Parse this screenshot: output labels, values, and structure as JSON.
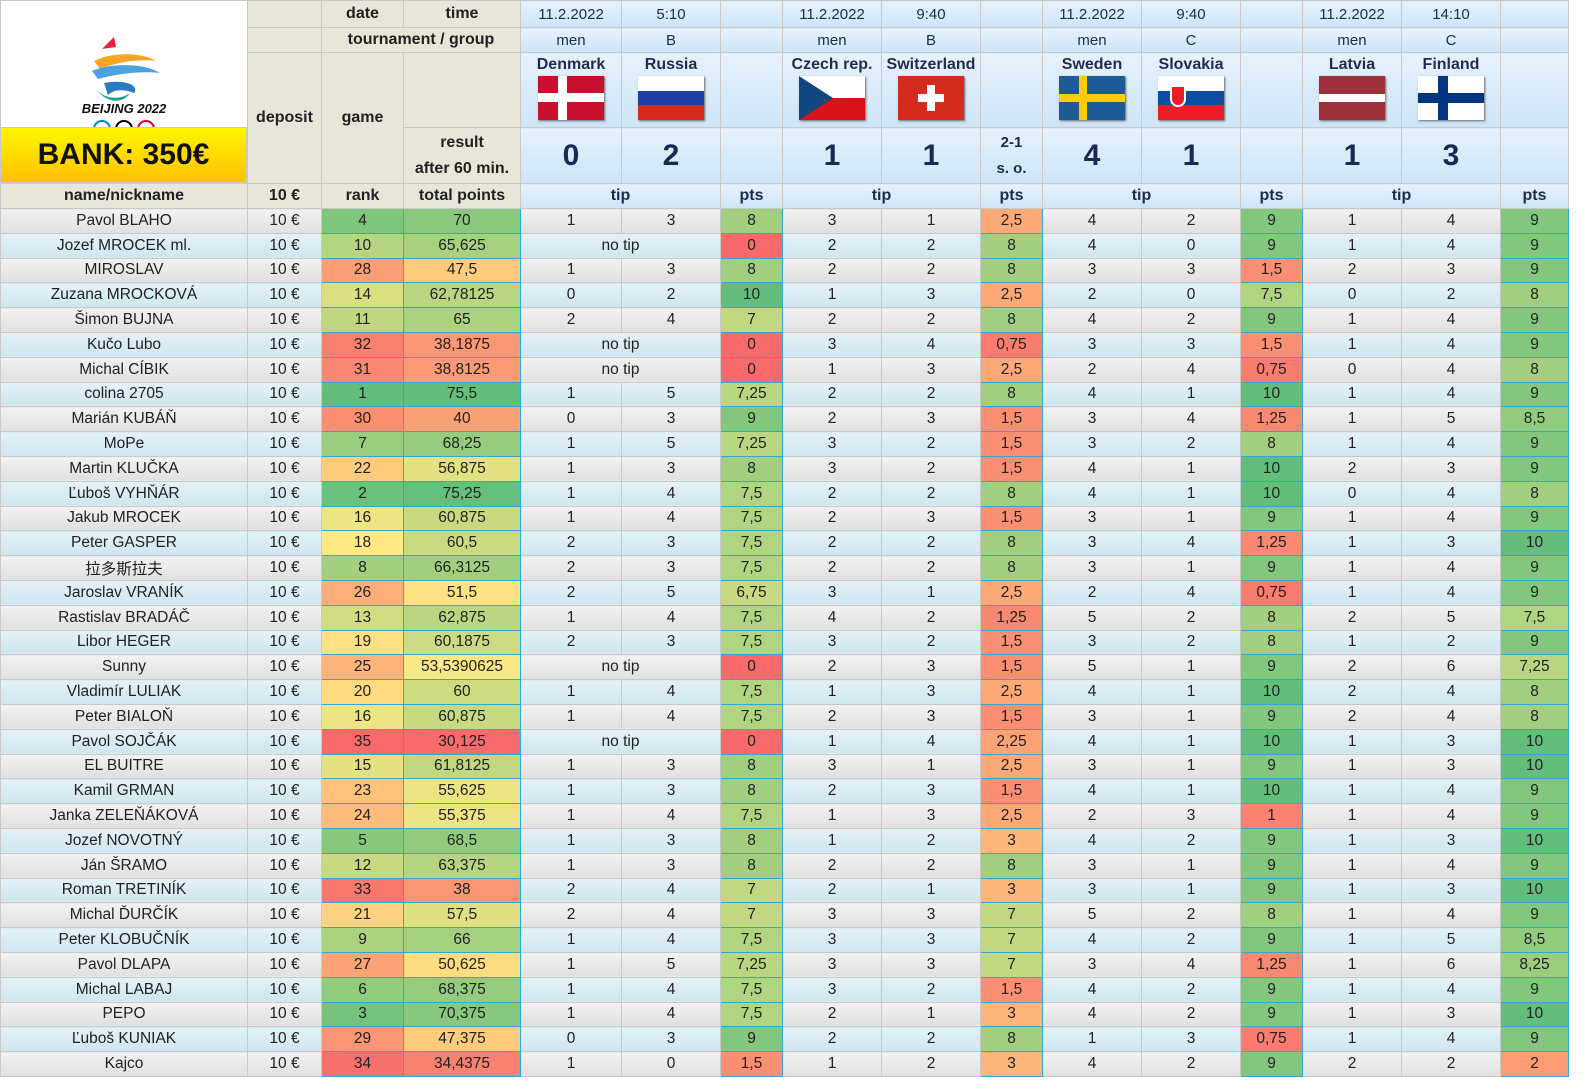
{
  "header": {
    "bank": "BANK: 350€",
    "logo_text": "BEIJING 2022",
    "date_label": "date",
    "time_label": "time",
    "tournament_label": "tournament / group",
    "deposit_label": "deposit",
    "game_label": "game",
    "result_label_1": "result",
    "result_label_2": "after 60 min.",
    "name_label": "name/nickname",
    "deposit_value": "10 €",
    "rank_label": "rank",
    "total_label": "total points",
    "tip_label": "tip",
    "pts_label": "pts"
  },
  "matches": [
    {
      "date": "11.2.2022",
      "time": "5:10",
      "tournament": "men",
      "group": "B",
      "home": "Denmark",
      "away": "Russia",
      "home_score": "0",
      "away_score": "2",
      "note1": "",
      "note2": ""
    },
    {
      "date": "11.2.2022",
      "time": "9:40",
      "tournament": "men",
      "group": "B",
      "home": "Czech rep.",
      "away": "Switzerland",
      "home_score": "1",
      "away_score": "1",
      "note1": "2-1",
      "note2": "s. o."
    },
    {
      "date": "11.2.2022",
      "time": "9:40",
      "tournament": "men",
      "group": "C",
      "home": "Sweden",
      "away": "Slovakia",
      "home_score": "4",
      "away_score": "1",
      "note1": "",
      "note2": ""
    },
    {
      "date": "11.2.2022",
      "time": "14:10",
      "tournament": "men",
      "group": "C",
      "home": "Latvia",
      "away": "Finland",
      "home_score": "1",
      "away_score": "3",
      "note1": "",
      "note2": ""
    }
  ],
  "colors": {
    "red": "#f8696b",
    "yellow": "#ffe984",
    "green": "#63be7b",
    "cell_border": "#29a9e0"
  },
  "no_tip": "no tip",
  "rows": [
    [
      "Pavol BLAHO",
      "10 €",
      "4",
      "70",
      [
        "1",
        "3",
        "8"
      ],
      [
        "3",
        "1",
        "2,5"
      ],
      [
        "4",
        "2",
        "9"
      ],
      [
        "1",
        "4",
        "9"
      ]
    ],
    [
      "Jozef MROCEK ml.",
      "10 €",
      "10",
      "65,625",
      [
        "",
        "",
        "0"
      ],
      [
        "2",
        "2",
        "8"
      ],
      [
        "4",
        "0",
        "9"
      ],
      [
        "1",
        "4",
        "9"
      ]
    ],
    [
      "MIROSLAV",
      "10 €",
      "28",
      "47,5",
      [
        "1",
        "3",
        "8"
      ],
      [
        "2",
        "2",
        "8"
      ],
      [
        "3",
        "3",
        "1,5"
      ],
      [
        "2",
        "3",
        "9"
      ]
    ],
    [
      "Zuzana MROCKOVÁ",
      "10 €",
      "14",
      "62,78125",
      [
        "0",
        "2",
        "10"
      ],
      [
        "1",
        "3",
        "2,5"
      ],
      [
        "2",
        "0",
        "7,5"
      ],
      [
        "0",
        "2",
        "8"
      ]
    ],
    [
      "Šimon BUJNA",
      "10 €",
      "11",
      "65",
      [
        "2",
        "4",
        "7"
      ],
      [
        "2",
        "2",
        "8"
      ],
      [
        "4",
        "2",
        "9"
      ],
      [
        "1",
        "4",
        "9"
      ]
    ],
    [
      "Kučo Lubo",
      "10 €",
      "32",
      "38,1875",
      [
        "",
        "",
        "0"
      ],
      [
        "3",
        "4",
        "0,75"
      ],
      [
        "3",
        "3",
        "1,5"
      ],
      [
        "1",
        "4",
        "9"
      ]
    ],
    [
      "Michal CÍBIK",
      "10 €",
      "31",
      "38,8125",
      [
        "",
        "",
        "0"
      ],
      [
        "1",
        "3",
        "2,5"
      ],
      [
        "2",
        "4",
        "0,75"
      ],
      [
        "0",
        "4",
        "8"
      ]
    ],
    [
      "colina 2705",
      "10 €",
      "1",
      "75,5",
      [
        "1",
        "5",
        "7,25"
      ],
      [
        "2",
        "2",
        "8"
      ],
      [
        "4",
        "1",
        "10"
      ],
      [
        "1",
        "4",
        "9"
      ]
    ],
    [
      "Marián KUBÁŇ",
      "10 €",
      "30",
      "40",
      [
        "0",
        "3",
        "9"
      ],
      [
        "2",
        "3",
        "1,5"
      ],
      [
        "3",
        "4",
        "1,25"
      ],
      [
        "1",
        "5",
        "8,5"
      ]
    ],
    [
      "MoPe",
      "10 €",
      "7",
      "68,25",
      [
        "1",
        "5",
        "7,25"
      ],
      [
        "3",
        "2",
        "1,5"
      ],
      [
        "3",
        "2",
        "8"
      ],
      [
        "1",
        "4",
        "9"
      ]
    ],
    [
      "Martin KLUČKA",
      "10 €",
      "22",
      "56,875",
      [
        "1",
        "3",
        "8"
      ],
      [
        "3",
        "2",
        "1,5"
      ],
      [
        "4",
        "1",
        "10"
      ],
      [
        "2",
        "3",
        "9"
      ]
    ],
    [
      "Ľuboš VYHŇÁR",
      "10 €",
      "2",
      "75,25",
      [
        "1",
        "4",
        "7,5"
      ],
      [
        "2",
        "2",
        "8"
      ],
      [
        "4",
        "1",
        "10"
      ],
      [
        "0",
        "4",
        "8"
      ]
    ],
    [
      "Jakub MROCEK",
      "10 €",
      "16",
      "60,875",
      [
        "1",
        "4",
        "7,5"
      ],
      [
        "2",
        "3",
        "1,5"
      ],
      [
        "3",
        "1",
        "9"
      ],
      [
        "1",
        "4",
        "9"
      ]
    ],
    [
      "Peter GASPER",
      "10 €",
      "18",
      "60,5",
      [
        "2",
        "3",
        "7,5"
      ],
      [
        "2",
        "2",
        "8"
      ],
      [
        "3",
        "4",
        "1,25"
      ],
      [
        "1",
        "3",
        "10"
      ]
    ],
    [
      "拉多斯拉夫",
      "10 €",
      "8",
      "66,3125",
      [
        "2",
        "3",
        "7,5"
      ],
      [
        "2",
        "2",
        "8"
      ],
      [
        "3",
        "1",
        "9"
      ],
      [
        "1",
        "4",
        "9"
      ]
    ],
    [
      "Jaroslav VRANÍK",
      "10 €",
      "26",
      "51,5",
      [
        "2",
        "5",
        "6,75"
      ],
      [
        "3",
        "1",
        "2,5"
      ],
      [
        "2",
        "4",
        "0,75"
      ],
      [
        "1",
        "4",
        "9"
      ]
    ],
    [
      "Rastislav BRADÁČ",
      "10 €",
      "13",
      "62,875",
      [
        "1",
        "4",
        "7,5"
      ],
      [
        "4",
        "2",
        "1,25"
      ],
      [
        "5",
        "2",
        "8"
      ],
      [
        "2",
        "5",
        "7,5"
      ]
    ],
    [
      "Libor HEGER",
      "10 €",
      "19",
      "60,1875",
      [
        "2",
        "3",
        "7,5"
      ],
      [
        "3",
        "2",
        "1,5"
      ],
      [
        "3",
        "2",
        "8"
      ],
      [
        "1",
        "2",
        "9"
      ]
    ],
    [
      "Sunny",
      "10 €",
      "25",
      "53,5390625",
      [
        "",
        "",
        "0"
      ],
      [
        "2",
        "3",
        "1,5"
      ],
      [
        "5",
        "1",
        "9"
      ],
      [
        "2",
        "6",
        "7,25"
      ]
    ],
    [
      "Vladimír LULIAK",
      "10 €",
      "20",
      "60",
      [
        "1",
        "4",
        "7,5"
      ],
      [
        "1",
        "3",
        "2,5"
      ],
      [
        "4",
        "1",
        "10"
      ],
      [
        "2",
        "4",
        "8"
      ]
    ],
    [
      "Peter BIALOŇ",
      "10 €",
      "16",
      "60,875",
      [
        "1",
        "4",
        "7,5"
      ],
      [
        "2",
        "3",
        "1,5"
      ],
      [
        "3",
        "1",
        "9"
      ],
      [
        "2",
        "4",
        "8"
      ]
    ],
    [
      "Pavol SOJČÁK",
      "10 €",
      "35",
      "30,125",
      [
        "",
        "",
        "0"
      ],
      [
        "1",
        "4",
        "2,25"
      ],
      [
        "4",
        "1",
        "10"
      ],
      [
        "1",
        "3",
        "10"
      ]
    ],
    [
      "EL BUITRE",
      "10 €",
      "15",
      "61,8125",
      [
        "1",
        "3",
        "8"
      ],
      [
        "3",
        "1",
        "2,5"
      ],
      [
        "3",
        "1",
        "9"
      ],
      [
        "1",
        "3",
        "10"
      ]
    ],
    [
      "Kamil GRMAN",
      "10 €",
      "23",
      "55,625",
      [
        "1",
        "3",
        "8"
      ],
      [
        "2",
        "3",
        "1,5"
      ],
      [
        "4",
        "1",
        "10"
      ],
      [
        "1",
        "4",
        "9"
      ]
    ],
    [
      "Janka ZELEŇÁKOVÁ",
      "10 €",
      "24",
      "55,375",
      [
        "1",
        "4",
        "7,5"
      ],
      [
        "1",
        "3",
        "2,5"
      ],
      [
        "2",
        "3",
        "1"
      ],
      [
        "1",
        "4",
        "9"
      ]
    ],
    [
      "Jozef NOVOTNÝ",
      "10 €",
      "5",
      "68,5",
      [
        "1",
        "3",
        "8"
      ],
      [
        "1",
        "2",
        "3"
      ],
      [
        "4",
        "2",
        "9"
      ],
      [
        "1",
        "3",
        "10"
      ]
    ],
    [
      "Ján ŠRAMO",
      "10 €",
      "12",
      "63,375",
      [
        "1",
        "3",
        "8"
      ],
      [
        "2",
        "2",
        "8"
      ],
      [
        "3",
        "1",
        "9"
      ],
      [
        "1",
        "4",
        "9"
      ]
    ],
    [
      "Roman TRETINÍK",
      "10 €",
      "33",
      "38",
      [
        "2",
        "4",
        "7"
      ],
      [
        "2",
        "1",
        "3"
      ],
      [
        "3",
        "1",
        "9"
      ],
      [
        "1",
        "3",
        "10"
      ]
    ],
    [
      "Michal ĎURČÍK",
      "10 €",
      "21",
      "57,5",
      [
        "2",
        "4",
        "7"
      ],
      [
        "3",
        "3",
        "7"
      ],
      [
        "5",
        "2",
        "8"
      ],
      [
        "1",
        "4",
        "9"
      ]
    ],
    [
      "Peter KLOBUČNÍK",
      "10 €",
      "9",
      "66",
      [
        "1",
        "4",
        "7,5"
      ],
      [
        "3",
        "3",
        "7"
      ],
      [
        "4",
        "2",
        "9"
      ],
      [
        "1",
        "5",
        "8,5"
      ]
    ],
    [
      "Pavol DLAPA",
      "10 €",
      "27",
      "50,625",
      [
        "1",
        "5",
        "7,25"
      ],
      [
        "3",
        "3",
        "7"
      ],
      [
        "3",
        "4",
        "1,25"
      ],
      [
        "1",
        "6",
        "8,25"
      ]
    ],
    [
      "Michal LABAJ",
      "10 €",
      "6",
      "68,375",
      [
        "1",
        "4",
        "7,5"
      ],
      [
        "3",
        "2",
        "1,5"
      ],
      [
        "4",
        "2",
        "9"
      ],
      [
        "1",
        "4",
        "9"
      ]
    ],
    [
      "PEPO",
      "10 €",
      "3",
      "70,375",
      [
        "1",
        "4",
        "7,5"
      ],
      [
        "2",
        "1",
        "3"
      ],
      [
        "4",
        "2",
        "9"
      ],
      [
        "1",
        "3",
        "10"
      ]
    ],
    [
      "Ľuboš KUNIAK",
      "10 €",
      "29",
      "47,375",
      [
        "0",
        "3",
        "9"
      ],
      [
        "2",
        "2",
        "8"
      ],
      [
        "1",
        "3",
        "0,75"
      ],
      [
        "1",
        "4",
        "9"
      ]
    ],
    [
      "Kajco",
      "10 €",
      "34",
      "34,4375",
      [
        "1",
        "0",
        "1,5"
      ],
      [
        "1",
        "2",
        "3"
      ],
      [
        "4",
        "2",
        "9"
      ],
      [
        "2",
        "2",
        "2"
      ]
    ]
  ]
}
